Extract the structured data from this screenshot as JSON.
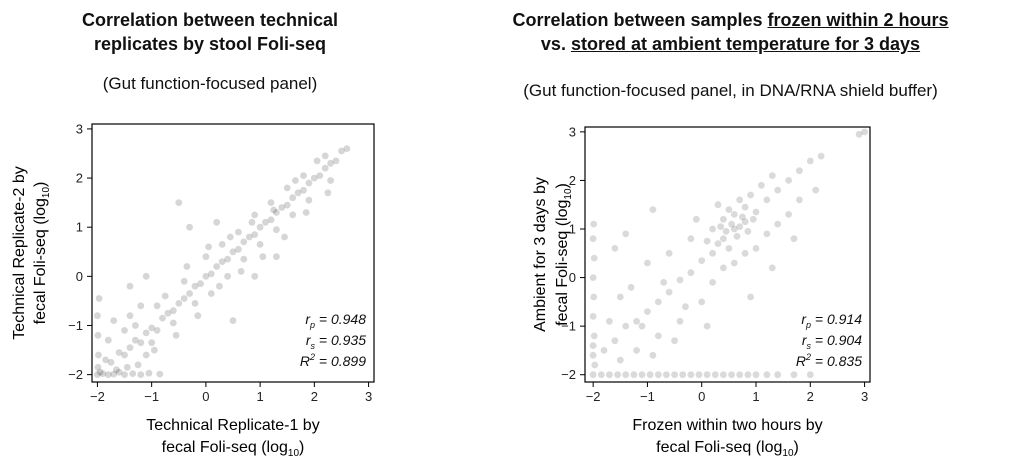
{
  "panels": [
    {
      "title_lines": [
        [
          {
            "text": "Correlation between technical",
            "underline": false
          }
        ],
        [
          {
            "text": "replicates by stool Foli-seq",
            "underline": false
          }
        ]
      ],
      "subtitle": "(Gut function-focused panel)",
      "ylabel_line1": "Technical Replicate-2 by",
      "ylabel_line2": "fecal Foli-seq (log",
      "ylabel_sub": "10",
      "xlabel_line1": "Technical Replicate-1 by",
      "xlabel_line2": "fecal Foli-seq (log",
      "xlabel_sub": "10",
      "stats": [
        {
          "sym": "r",
          "sub": "p",
          "sup": "",
          "value": " = 0.948"
        },
        {
          "sym": "r",
          "sub": "s",
          "sup": "",
          "value": " = 0.935"
        },
        {
          "sym": "R",
          "sub": "",
          "sup": "2",
          "value": " = 0.899"
        }
      ]
    },
    {
      "title_lines": [
        [
          {
            "text": "Correlation between samples ",
            "underline": false
          },
          {
            "text": "frozen within 2 hours",
            "underline": true
          }
        ],
        [
          {
            "text": "vs. ",
            "underline": false
          },
          {
            "text": "stored at ambient temperature for 3 days",
            "underline": true
          }
        ]
      ],
      "subtitle": "(Gut function-focused panel, in DNA/RNA shield buffer)",
      "ylabel_line1": "Ambient for 3 days by",
      "ylabel_line2": "fecal Foli-seq (log",
      "ylabel_sub": "10",
      "xlabel_line1": "Frozen within two hours by",
      "xlabel_line2": "fecal Foli-seq (log",
      "xlabel_sub": "10",
      "stats": [
        {
          "sym": "r",
          "sub": "p",
          "sup": "",
          "value": " = 0.914"
        },
        {
          "sym": "r",
          "sub": "s",
          "sup": "",
          "value": " = 0.904"
        },
        {
          "sym": "R",
          "sub": "",
          "sup": "2",
          "value": " = 0.835"
        }
      ]
    }
  ],
  "chart_data": [
    {
      "type": "scatter",
      "xlim": [
        -2.1,
        3.1
      ],
      "ylim": [
        -2.15,
        3.1
      ],
      "x_ticks": [
        -2,
        -1,
        0,
        1,
        2,
        3
      ],
      "y_ticks": [
        -2,
        -1,
        0,
        1,
        2,
        3
      ],
      "grid": false,
      "point_color": "#1a1a1a",
      "point_opacity": 0.18,
      "stats": {
        "r_p": 0.948,
        "r_s": 0.935,
        "R2": 0.899
      },
      "points": [
        [
          -2.0,
          -2.0
        ],
        [
          -1.98,
          -1.6
        ],
        [
          -1.99,
          -1.2
        ],
        [
          -2.0,
          -0.8
        ],
        [
          -1.97,
          -0.45
        ],
        [
          -1.99,
          -1.85
        ],
        [
          -1.95,
          -1.95
        ],
        [
          -1.9,
          -1.98
        ],
        [
          -1.8,
          -2.0
        ],
        [
          -1.7,
          -1.99
        ],
        [
          -1.6,
          -1.95
        ],
        [
          -1.5,
          -2.0
        ],
        [
          -1.35,
          -1.98
        ],
        [
          -1.2,
          -2.0
        ],
        [
          -1.05,
          -1.97
        ],
        [
          -0.85,
          -1.99
        ],
        [
          -1.85,
          -1.7
        ],
        [
          -1.75,
          -1.75
        ],
        [
          -1.6,
          -1.55
        ],
        [
          -1.5,
          -1.6
        ],
        [
          -1.4,
          -1.45
        ],
        [
          -1.3,
          -1.3
        ],
        [
          -1.2,
          -1.35
        ],
        [
          -1.1,
          -1.15
        ],
        [
          -1.0,
          -1.05
        ],
        [
          -0.9,
          -1.1
        ],
        [
          -0.8,
          -0.85
        ],
        [
          -0.7,
          -0.75
        ],
        [
          -0.6,
          -0.7
        ],
        [
          -0.5,
          -0.55
        ],
        [
          -0.4,
          -0.45
        ],
        [
          -0.3,
          -0.35
        ],
        [
          -0.2,
          -0.2
        ],
        [
          -0.1,
          -0.15
        ],
        [
          0.0,
          0.0
        ],
        [
          0.1,
          0.05
        ],
        [
          0.2,
          0.2
        ],
        [
          0.3,
          0.3
        ],
        [
          0.4,
          0.35
        ],
        [
          0.5,
          0.5
        ],
        [
          0.6,
          0.55
        ],
        [
          0.7,
          0.7
        ],
        [
          0.8,
          0.8
        ],
        [
          0.9,
          0.85
        ],
        [
          1.0,
          1.0
        ],
        [
          1.1,
          1.1
        ],
        [
          1.2,
          1.15
        ],
        [
          1.3,
          1.3
        ],
        [
          1.4,
          1.4
        ],
        [
          1.5,
          1.45
        ],
        [
          1.6,
          1.6
        ],
        [
          1.7,
          1.7
        ],
        [
          1.8,
          1.75
        ],
        [
          1.9,
          1.9
        ],
        [
          2.0,
          2.0
        ],
        [
          2.1,
          2.05
        ],
        [
          2.2,
          2.2
        ],
        [
          2.3,
          2.3
        ],
        [
          2.4,
          2.35
        ],
        [
          2.5,
          2.55
        ],
        [
          2.6,
          2.6
        ],
        [
          -1.3,
          -1.0
        ],
        [
          -1.0,
          -1.35
        ],
        [
          -0.9,
          -0.6
        ],
        [
          -0.6,
          -0.95
        ],
        [
          -0.4,
          -0.1
        ],
        [
          -0.2,
          -0.55
        ],
        [
          0.0,
          0.4
        ],
        [
          0.1,
          -0.35
        ],
        [
          0.3,
          0.65
        ],
        [
          0.4,
          0.0
        ],
        [
          0.6,
          0.9
        ],
        [
          0.7,
          0.35
        ],
        [
          0.9,
          1.25
        ],
        [
          1.0,
          0.65
        ],
        [
          1.2,
          1.5
        ],
        [
          1.3,
          0.95
        ],
        [
          1.5,
          1.8
        ],
        [
          1.6,
          1.25
        ],
        [
          1.8,
          2.05
        ],
        [
          1.9,
          1.55
        ],
        [
          2.2,
          2.45
        ],
        [
          2.3,
          1.95
        ],
        [
          -1.5,
          -1.1
        ],
        [
          -1.4,
          -0.8
        ],
        [
          -1.2,
          -0.6
        ],
        [
          -1.1,
          -1.6
        ],
        [
          -0.95,
          -1.5
        ],
        [
          -0.75,
          -0.4
        ],
        [
          -0.55,
          -1.2
        ],
        [
          -0.35,
          0.2
        ],
        [
          -0.15,
          -0.8
        ],
        [
          0.05,
          0.6
        ],
        [
          0.25,
          -0.2
        ],
        [
          0.45,
          0.8
        ],
        [
          0.65,
          0.1
        ],
        [
          0.85,
          1.1
        ],
        [
          1.05,
          0.4
        ],
        [
          1.25,
          1.35
        ],
        [
          1.45,
          0.8
        ],
        [
          1.65,
          1.95
        ],
        [
          1.85,
          1.3
        ],
        [
          2.05,
          2.35
        ],
        [
          2.25,
          1.7
        ],
        [
          -1.8,
          -1.3
        ],
        [
          -1.7,
          -0.9
        ],
        [
          -1.65,
          -1.9
        ],
        [
          -1.45,
          -1.85
        ],
        [
          -1.25,
          -1.8
        ],
        [
          -0.5,
          1.5
        ],
        [
          -0.3,
          1.0
        ],
        [
          0.2,
          1.1
        ],
        [
          -1.1,
          0.0
        ],
        [
          -1.4,
          -0.2
        ],
        [
          0.9,
          0.0
        ],
        [
          1.3,
          0.4
        ],
        [
          0.5,
          -0.9
        ]
      ]
    },
    {
      "type": "scatter",
      "xlim": [
        -2.15,
        3.1
      ],
      "ylim": [
        -2.15,
        3.1
      ],
      "x_ticks": [
        -2,
        -1,
        0,
        1,
        2,
        3
      ],
      "y_ticks": [
        -2,
        -1,
        0,
        1,
        2,
        3
      ],
      "grid": false,
      "point_color": "#1a1a1a",
      "point_opacity": 0.16,
      "stats": {
        "r_p": 0.914,
        "r_s": 0.904,
        "R2": 0.835
      },
      "points": [
        [
          -2.0,
          -2.0
        ],
        [
          -1.85,
          -2.0
        ],
        [
          -1.7,
          -2.0
        ],
        [
          -1.55,
          -2.0
        ],
        [
          -1.4,
          -2.0
        ],
        [
          -1.25,
          -2.0
        ],
        [
          -1.1,
          -2.0
        ],
        [
          -0.95,
          -2.0
        ],
        [
          -0.8,
          -2.0
        ],
        [
          -0.65,
          -2.0
        ],
        [
          -0.5,
          -2.0
        ],
        [
          -0.35,
          -2.0
        ],
        [
          -0.2,
          -2.0
        ],
        [
          -0.05,
          -2.0
        ],
        [
          0.1,
          -2.0
        ],
        [
          0.25,
          -2.0
        ],
        [
          0.4,
          -2.0
        ],
        [
          0.55,
          -2.0
        ],
        [
          0.7,
          -2.0
        ],
        [
          0.85,
          -2.0
        ],
        [
          1.0,
          -2.0
        ],
        [
          1.2,
          -2.0
        ],
        [
          1.4,
          -2.0
        ],
        [
          1.7,
          -2.0
        ],
        [
          2.0,
          -2.0
        ],
        [
          -2.0,
          -1.6
        ],
        [
          -1.98,
          -1.2
        ],
        [
          -2.0,
          -0.8
        ],
        [
          -1.99,
          -0.4
        ],
        [
          -2.0,
          0.0
        ],
        [
          -1.98,
          0.4
        ],
        [
          -2.0,
          0.8
        ],
        [
          -1.99,
          1.1
        ],
        [
          -1.97,
          -1.8
        ],
        [
          -2.0,
          -1.4
        ],
        [
          -1.6,
          -1.3
        ],
        [
          -1.4,
          -1.0
        ],
        [
          -1.2,
          -0.9
        ],
        [
          -1.0,
          -0.7
        ],
        [
          -0.8,
          -0.5
        ],
        [
          -0.6,
          -0.3
        ],
        [
          -0.4,
          -0.05
        ],
        [
          -0.2,
          0.1
        ],
        [
          0.0,
          0.35
        ],
        [
          0.2,
          0.5
        ],
        [
          0.4,
          0.8
        ],
        [
          0.6,
          1.0
        ],
        [
          0.8,
          1.15
        ],
        [
          1.0,
          1.35
        ],
        [
          1.2,
          1.6
        ],
        [
          1.4,
          1.8
        ],
        [
          1.6,
          2.0
        ],
        [
          1.8,
          2.2
        ],
        [
          2.0,
          2.4
        ],
        [
          2.2,
          2.5
        ],
        [
          2.9,
          2.95
        ],
        [
          3.0,
          3.0
        ],
        [
          0.2,
          1.0
        ],
        [
          0.4,
          1.2
        ],
        [
          0.5,
          1.4
        ],
        [
          0.6,
          1.3
        ],
        [
          0.7,
          1.6
        ],
        [
          0.8,
          1.45
        ],
        [
          0.9,
          1.7
        ],
        [
          0.3,
          0.7
        ],
        [
          0.45,
          0.95
        ],
        [
          0.55,
          1.1
        ],
        [
          0.65,
          0.85
        ],
        [
          0.75,
          1.25
        ],
        [
          0.85,
          0.95
        ],
        [
          0.95,
          1.2
        ],
        [
          1.1,
          1.9
        ],
        [
          1.3,
          2.1
        ],
        [
          0.1,
          0.75
        ],
        [
          0.35,
          1.05
        ],
        [
          0.5,
          0.6
        ],
        [
          0.7,
          1.05
        ],
        [
          -1.5,
          -0.4
        ],
        [
          -1.2,
          -1.5
        ],
        [
          -1.0,
          0.3
        ],
        [
          -0.8,
          -1.2
        ],
        [
          -0.6,
          0.5
        ],
        [
          -0.4,
          -0.9
        ],
        [
          -0.2,
          0.8
        ],
        [
          0.0,
          -0.5
        ],
        [
          0.2,
          -0.1
        ],
        [
          0.4,
          0.2
        ],
        [
          0.6,
          0.3
        ],
        [
          0.8,
          0.5
        ],
        [
          1.0,
          0.6
        ],
        [
          1.2,
          0.9
        ],
        [
          1.4,
          1.1
        ],
        [
          1.6,
          1.3
        ],
        [
          1.8,
          1.6
        ],
        [
          2.1,
          1.8
        ],
        [
          -1.8,
          -1.5
        ],
        [
          -1.7,
          -0.9
        ],
        [
          -1.5,
          -1.7
        ],
        [
          -1.3,
          -0.2
        ],
        [
          -1.1,
          -1.0
        ],
        [
          -0.9,
          -1.6
        ],
        [
          -0.7,
          -0.1
        ],
        [
          -0.5,
          -1.3
        ],
        [
          -0.3,
          -0.6
        ],
        [
          -0.1,
          1.2
        ],
        [
          0.1,
          -1.0
        ],
        [
          0.3,
          1.5
        ],
        [
          -1.6,
          0.6
        ],
        [
          -1.4,
          0.9
        ],
        [
          -0.9,
          1.4
        ],
        [
          0.9,
          -0.4
        ],
        [
          1.3,
          0.2
        ],
        [
          1.7,
          0.8
        ]
      ]
    }
  ]
}
